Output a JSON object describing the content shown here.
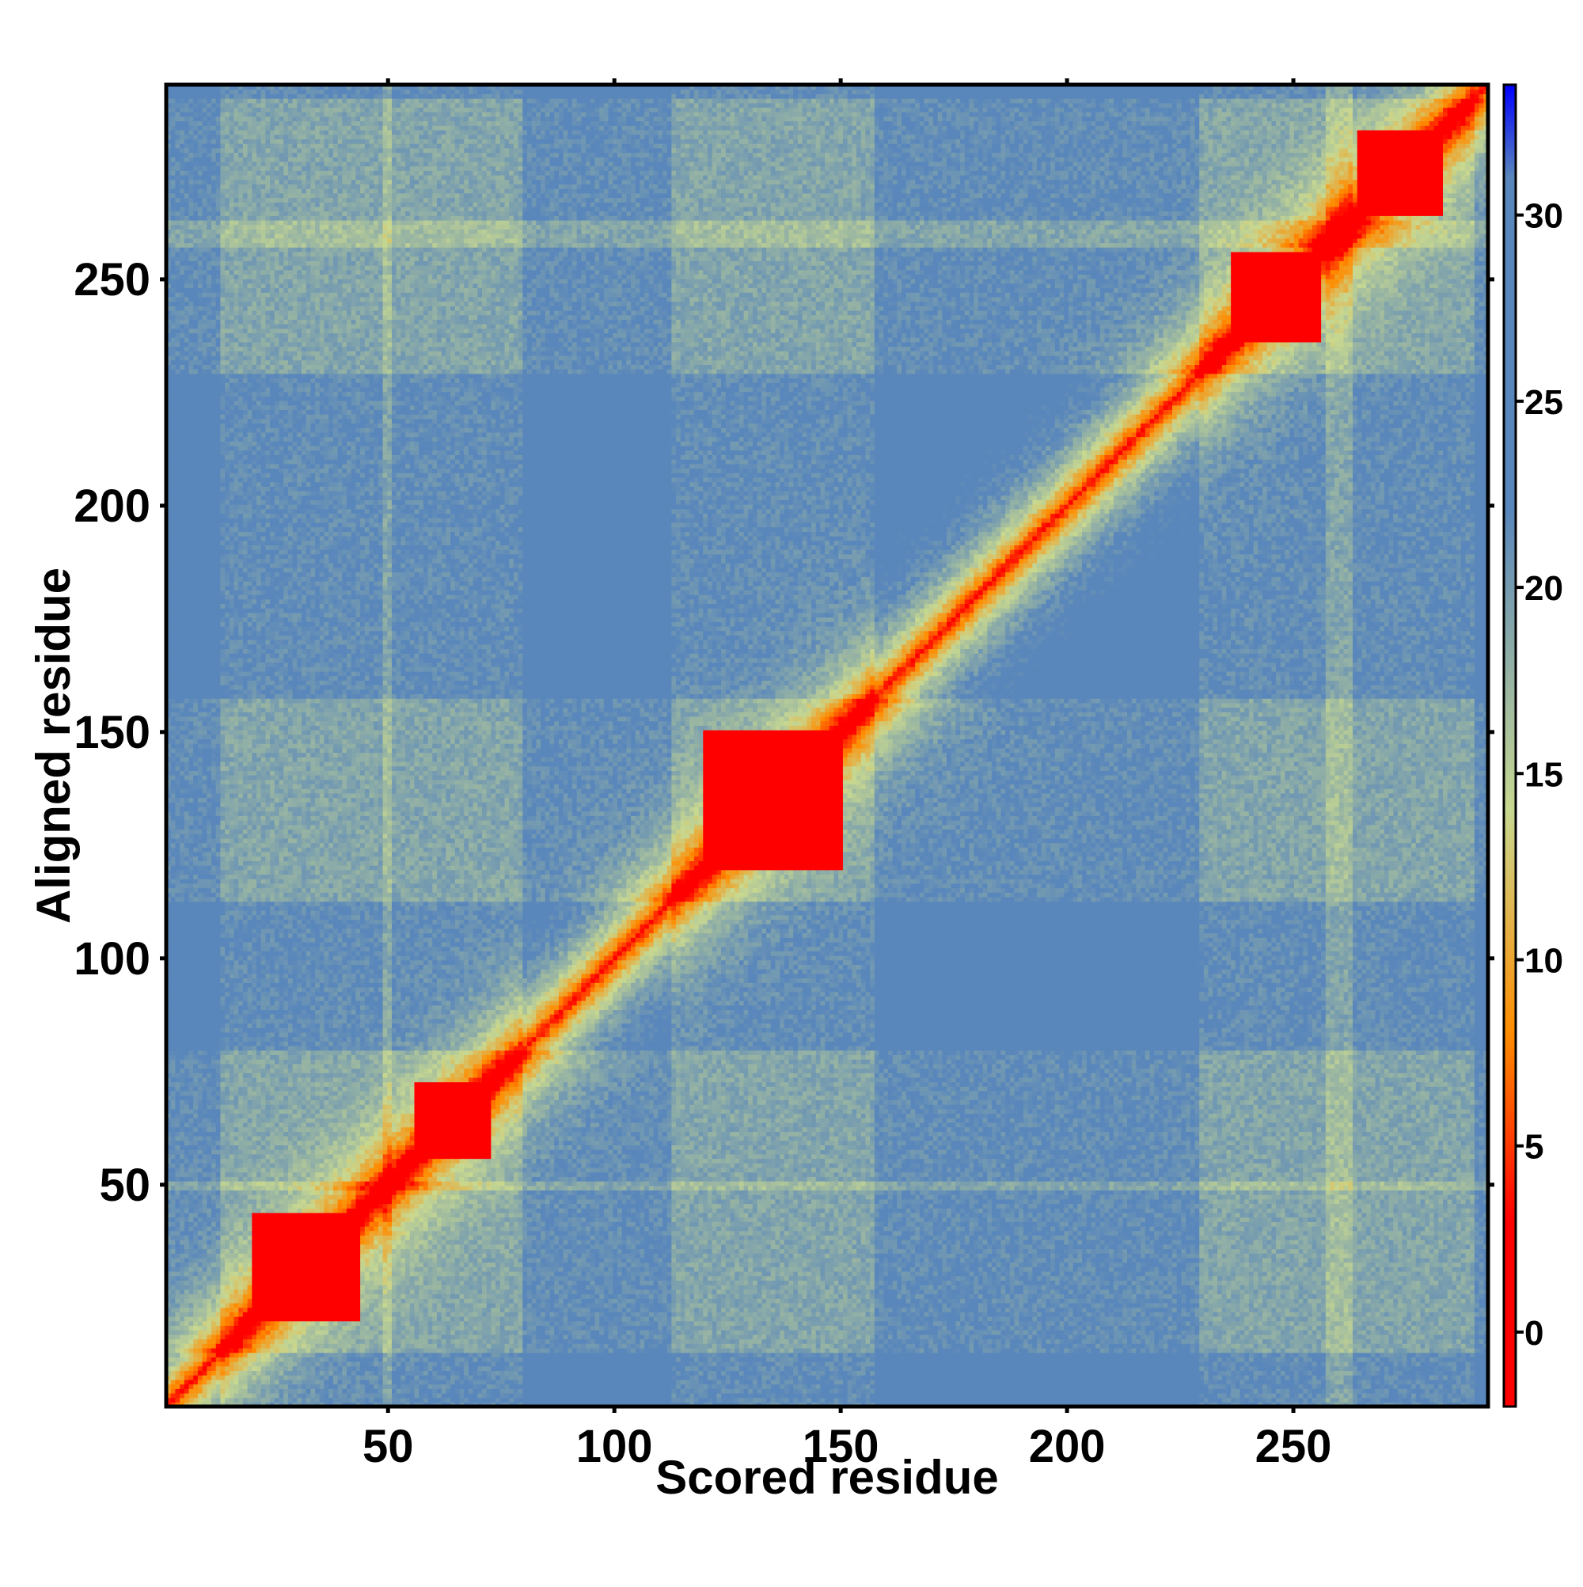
{
  "chart_data": {
    "type": "heatmap",
    "title": "",
    "xlabel": "Scored residue",
    "ylabel": "Aligned residue",
    "n_residues": 293,
    "xlim": [
      1,
      293
    ],
    "ylim": [
      1,
      293
    ],
    "x_ticks": [
      50,
      100,
      150,
      200,
      250
    ],
    "y_ticks": [
      50,
      100,
      150,
      200,
      250
    ],
    "colorbar": {
      "ticks": [
        0,
        5,
        10,
        15,
        20,
        25,
        30
      ],
      "range": [
        -2,
        33.5
      ],
      "colors": {
        "low": "#ff0000",
        "mid_low": "#ff8c00",
        "mid": "#c8d890",
        "high": "#5a87bb",
        "max": "#0000ff"
      }
    },
    "domains": [
      {
        "start": 20,
        "end": 43,
        "level": 3.5
      },
      {
        "start": 56,
        "end": 72,
        "level": 5
      },
      {
        "start": 120,
        "end": 150,
        "level": 2.8
      },
      {
        "start": 237,
        "end": 256,
        "level": 4
      },
      {
        "start": 265,
        "end": 283,
        "level": 3.5
      }
    ],
    "grid": false,
    "legend": "colorbar-right"
  }
}
